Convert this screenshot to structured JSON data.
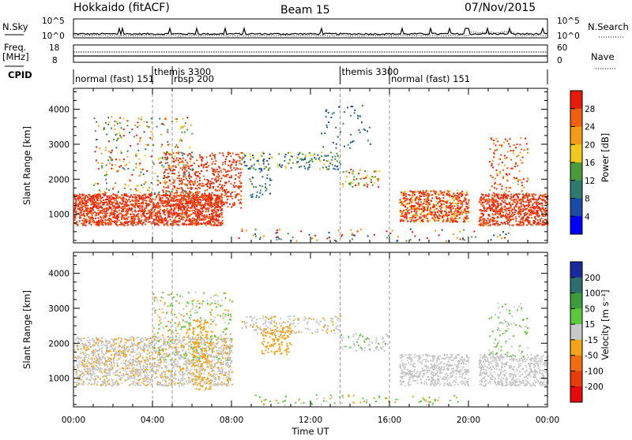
{
  "header": {
    "station": "Hokkaido (fitACF)",
    "beam": "Beam 15",
    "date": "07/Nov/2015"
  },
  "top_panels": {
    "nsky_label": "N.Sky",
    "nsearch_label": "N.Search",
    "noise_ticks": [
      "10^5",
      "10^0"
    ],
    "freq_label_1": "Freq.",
    "freq_label_2": "[MHz]",
    "freq_ticks": [
      "18",
      "8"
    ],
    "nave_label": "Nave",
    "nave_ticks": [
      "60",
      "0"
    ],
    "cpid_label": "CPID"
  },
  "cpid_segments": [
    {
      "label": "normal (fast) 151",
      "start_h": 0.0,
      "row": 2
    },
    {
      "label": "themis 3300",
      "start_h": 4.0,
      "row": 1
    },
    {
      "label": "rbsp 200",
      "start_h": 5.0,
      "row": 2
    },
    {
      "label": "themis 3300",
      "start_h": 13.5,
      "row": 1
    },
    {
      "label": "normal (fast) 151",
      "start_h": 16.0,
      "row": 2
    }
  ],
  "chart_data": [
    {
      "type": "heatmap",
      "name": "power",
      "xlabel": "Time UT",
      "ylabel": "Slant Range [km]",
      "xlim": [
        0,
        24
      ],
      "ylim": [
        180,
        4600
      ],
      "yticks": [
        "1000",
        "2000",
        "3000",
        "4000"
      ],
      "colorbar_label": "Power [dB]",
      "colorbar_ticks": [
        "4",
        "8",
        "12",
        "16",
        "20",
        "24",
        "28"
      ],
      "colorbar_colors": [
        "#0000ff",
        "#1c4aa8",
        "#2e7a6e",
        "#4a9a3a",
        "#f0c81e",
        "#f59c14",
        "#f06010",
        "#e81a0a"
      ]
    },
    {
      "type": "heatmap",
      "name": "velocity",
      "xlabel": "Time UT",
      "ylabel": "Slant Range [km]",
      "xlim": [
        0,
        24
      ],
      "ylim": [
        180,
        4600
      ],
      "yticks": [
        "1000",
        "2000",
        "3000",
        "4000"
      ],
      "colorbar_label": "Velocity [m s⁻¹]",
      "colorbar_ticks": [
        "200",
        "100",
        "50",
        "15",
        "-15",
        "-50",
        "-100",
        "-200"
      ],
      "colorbar_colors": [
        "#1a2a9c",
        "#2e6e6e",
        "#3c9c3c",
        "#5ac83a",
        "#c8c8c8",
        "#f5a418",
        "#f06e10",
        "#e83c0a",
        "#e80a0a"
      ]
    }
  ],
  "x_axis": {
    "ticks": [
      "00:00",
      "04:00",
      "08:00",
      "12:00",
      "16:00",
      "20:00",
      "00:00"
    ],
    "label": "Time UT"
  }
}
